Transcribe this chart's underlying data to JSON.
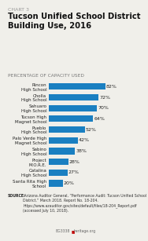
{
  "chart_label": "CHART 3",
  "title": "Tucson Unified School District\nBuilding Use, 2016",
  "subtitle": "PERCENTAGE OF CAPACITY USED",
  "categories": [
    "Santa Rita High\nSchool",
    "Catalina\nHigh School",
    "Project\nM.O.R.E.",
    "Sabino\nHigh School",
    "Palo Verde High\nMagnet School",
    "Pueblo\nHigh School",
    "Tucson High\nMagnet School",
    "Sahuaro\nHigh School",
    "Cholla\nHigh School",
    "Rincon\nHigh School"
  ],
  "values": [
    20,
    27,
    28,
    38,
    42,
    52,
    64,
    70,
    72,
    82
  ],
  "bar_color": "#1a7fc1",
  "label_color": "#222222",
  "source_bold": "SOURCE:",
  "source_text": " Arizona Auditor General, “Performance Audit: Tucson Unified School District,” March 2018. Report No. 18-204. https://www.azauditor.gov/sites/default/files/18-204_Report.pdf (accessed July 10, 2018).",
  "footer_left": "BG3338",
  "footer_right": "heritage.org",
  "background_color": "#f0efea",
  "title_fontsize": 7.2,
  "chart_label_fontsize": 4.5,
  "subtitle_fontsize": 4.2,
  "bar_label_fontsize": 4.5,
  "category_fontsize": 4.0,
  "source_fontsize": 3.3
}
